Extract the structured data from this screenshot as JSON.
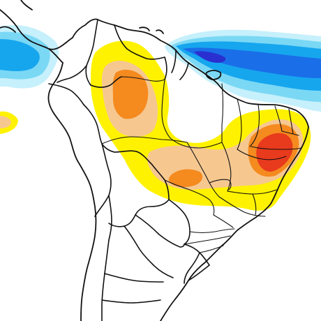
{
  "map": {
    "region": "South America",
    "colors": {
      "background": "#ffffff",
      "border": "#111111",
      "neg_light": "#c6f0fb",
      "neg_mid": "#7ad8f5",
      "neg_strong": "#16a6ee",
      "neg_deep": "#1a6ee8",
      "neg_core": "#2a2fd0",
      "pos_light": "#fff200",
      "pos_mid": "#f6c890",
      "pos_strong": "#f58a1f",
      "pos_core": "#e83a1c"
    }
  }
}
